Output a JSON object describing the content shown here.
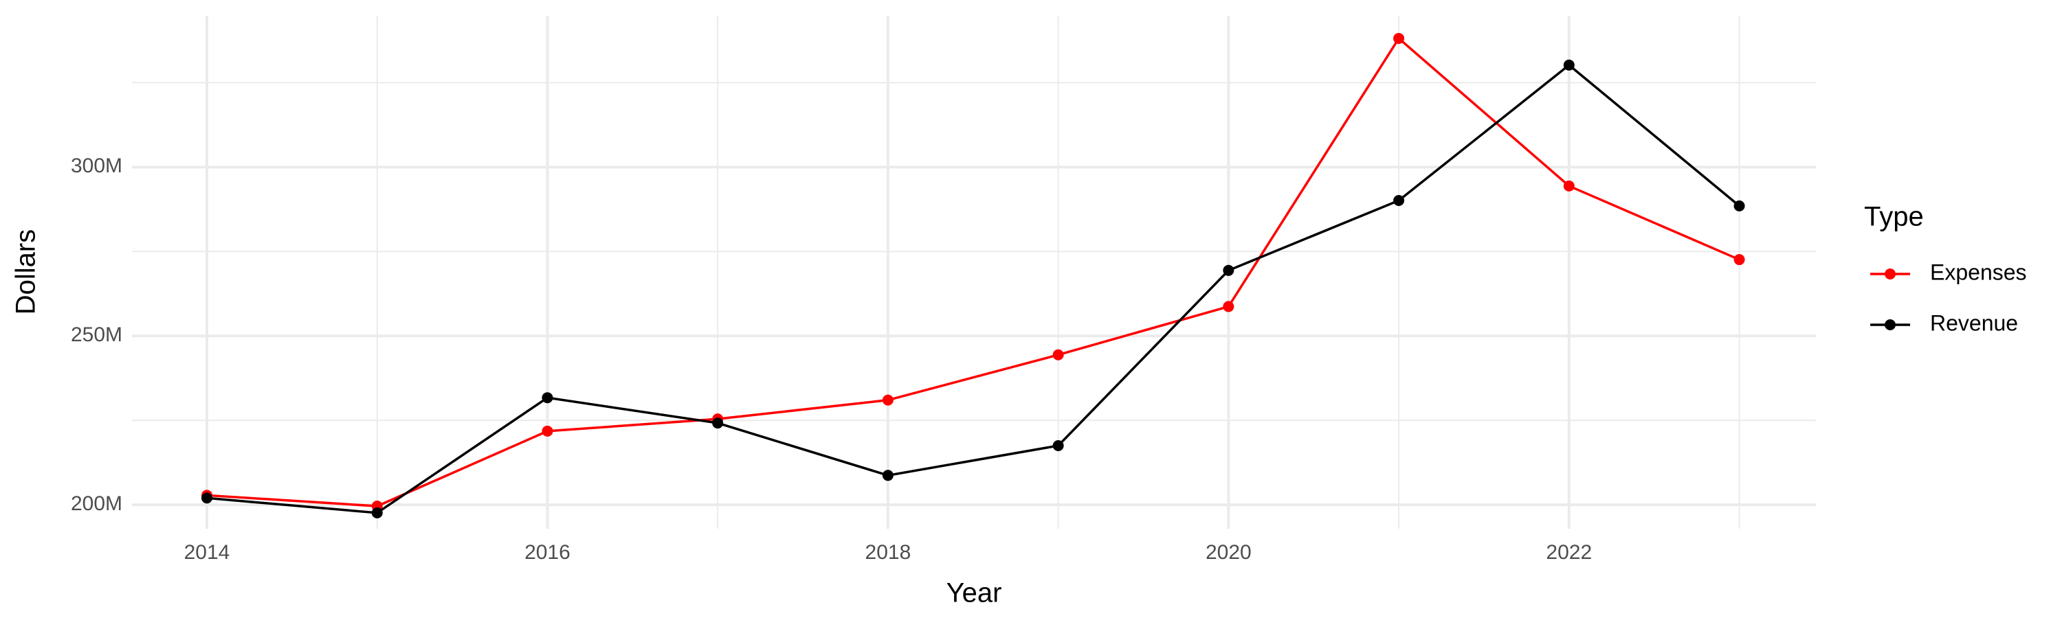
{
  "chart_data": {
    "type": "line",
    "x_label": "Year",
    "y_label": "Dollars",
    "legend_title": "Type",
    "legend_position": "right",
    "x": [
      2014,
      2015,
      2016,
      2017,
      2018,
      2019,
      2020,
      2021,
      2022,
      2023
    ],
    "series": [
      {
        "name": "Expenses",
        "color": "#ff0000",
        "values": [
          202800000,
          199600000,
          221800000,
          225400000,
          231000000,
          244400000,
          258700000,
          338100000,
          294400000,
          272600000
        ]
      },
      {
        "name": "Revenue",
        "color": "#000000",
        "values": [
          202000000,
          197600000,
          231700000,
          224200000,
          208700000,
          217500000,
          269400000,
          290100000,
          330200000,
          288500000
        ]
      }
    ],
    "xlim": [
      2013.56,
      2023.45
    ],
    "xticks": [
      2014,
      2016,
      2018,
      2020,
      2022
    ],
    "x_minor_ticks": [
      2015,
      2017,
      2019,
      2021,
      2023
    ],
    "ylim": [
      192900000,
      344800000
    ],
    "yticks": [
      {
        "value": 200000000,
        "label": "200M"
      },
      {
        "value": 250000000,
        "label": "250M"
      },
      {
        "value": 300000000,
        "label": "300M"
      }
    ],
    "y_minor_ticks": [
      225000000,
      275000000,
      325000000
    ],
    "grid": true
  }
}
